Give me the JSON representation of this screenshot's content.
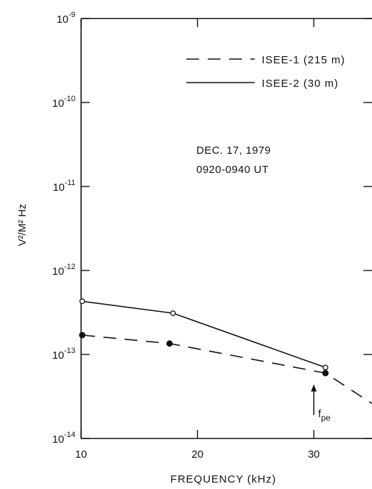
{
  "chart_data": {
    "type": "line",
    "xlabel": "FREQUENCY (kHz)",
    "ylabel": "V²/M² Hz",
    "xlim": [
      10,
      35
    ],
    "x_scale": "linear",
    "y_scale": "log",
    "ylim": [
      1e-14,
      1e-09
    ],
    "x_ticks": [
      {
        "value": 10,
        "label": "10"
      },
      {
        "value": 20,
        "label": "20"
      },
      {
        "value": 30,
        "label": "30"
      }
    ],
    "y_ticks": [
      {
        "exp": -14,
        "base": "10",
        "label": "-14"
      },
      {
        "exp": -13,
        "base": "10",
        "label": "-13"
      },
      {
        "exp": -12,
        "base": "10",
        "label": "-12"
      },
      {
        "exp": -11,
        "base": "10",
        "label": "-11"
      },
      {
        "exp": -10,
        "base": "10",
        "label": "-10"
      },
      {
        "exp": -9,
        "base": "10",
        "label": "-9"
      }
    ],
    "grid": false,
    "legend_position": "top-right",
    "series": [
      {
        "name": "ISEE-1 (215 m)",
        "style": "dashed",
        "marker": "filled-circle",
        "x": [
          10.1,
          17.6,
          31.0,
          35.0
        ],
        "y": [
          1.7e-13,
          1.35e-13,
          6e-14,
          2.6e-14
        ],
        "marker_count": 3
      },
      {
        "name": "ISEE-2 (30 m)",
        "style": "solid",
        "marker": "open-circle",
        "x": [
          10.1,
          17.9,
          31.0
        ],
        "y": [
          4.3e-13,
          3.1e-13,
          7e-14
        ],
        "marker_count": 3
      }
    ],
    "annotations": {
      "date": "DEC. 17, 1979",
      "time": "0920-0940 UT",
      "arrow_label_main": "f",
      "arrow_label_sub": "pe",
      "arrow_x": 30.0
    }
  }
}
